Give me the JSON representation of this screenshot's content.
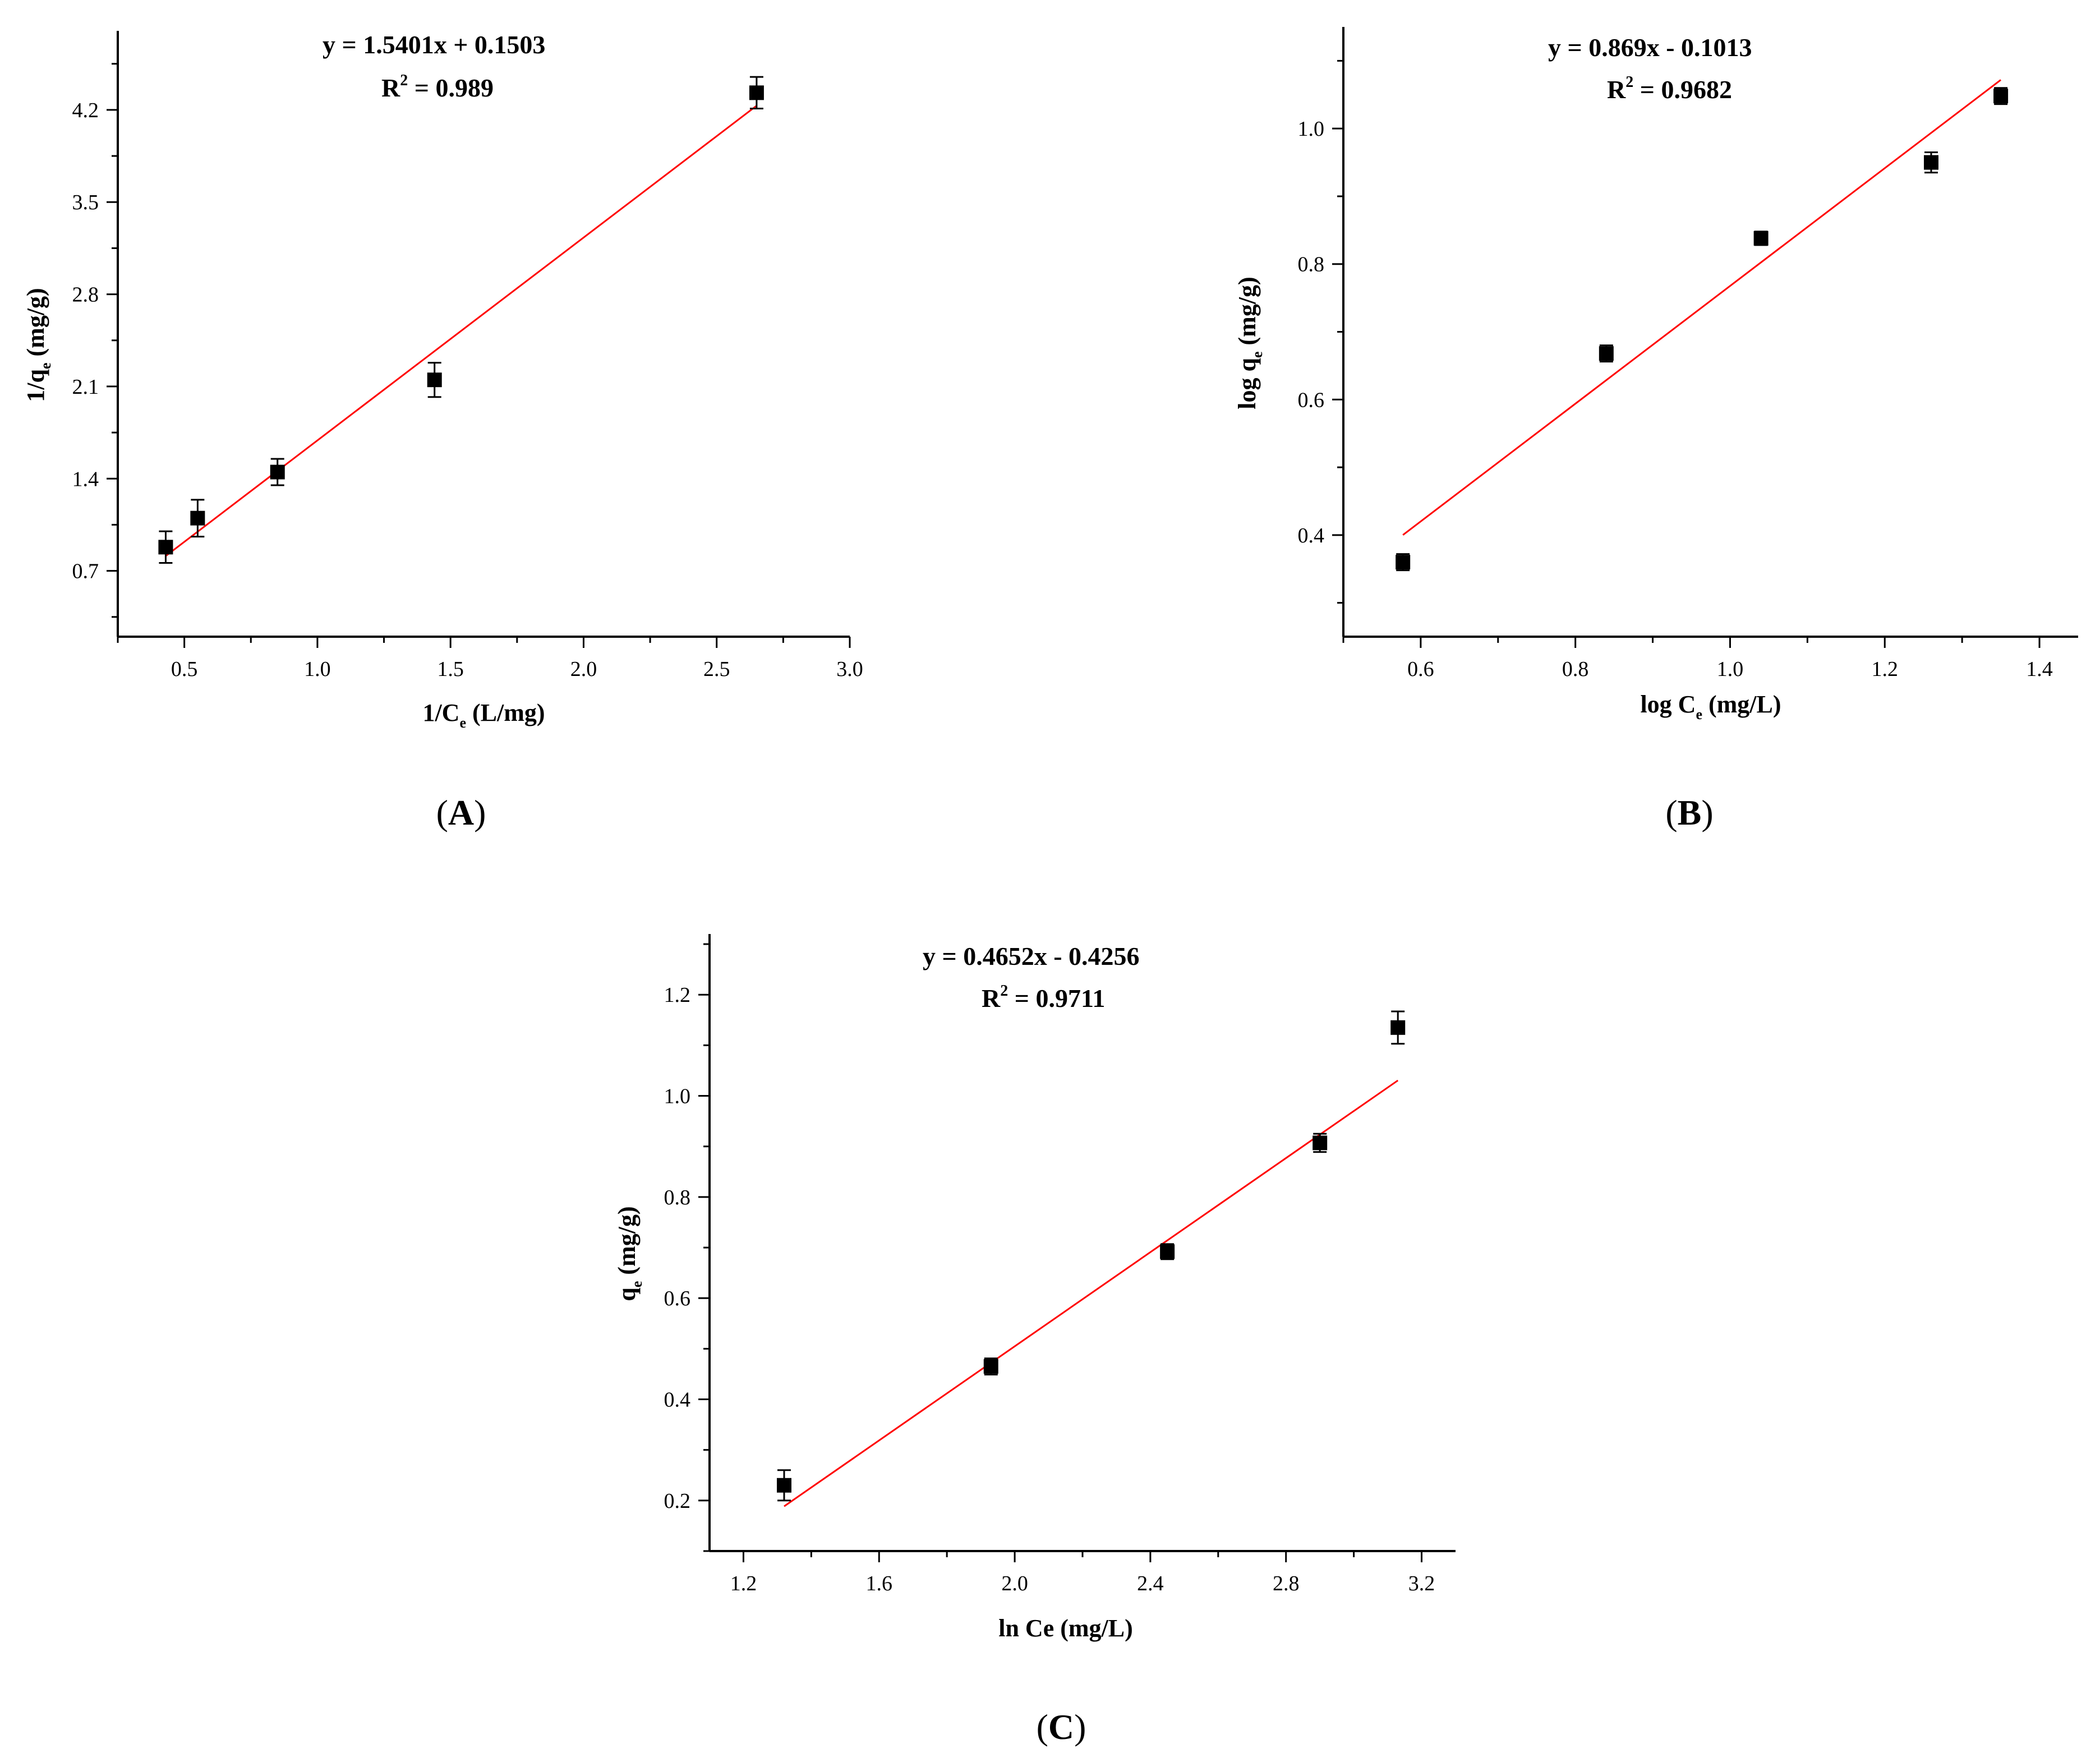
{
  "colors": {
    "fit_line": "#ff0000",
    "marker": "#000000",
    "axis": "#000000",
    "background": "#ffffff"
  },
  "chart_data": [
    {
      "id": "A",
      "type": "scatter",
      "panel_label": "A",
      "xlabel": {
        "main": "1/C",
        "sub": "e",
        "rest": " (L/mg)"
      },
      "ylabel": {
        "main": "1/q",
        "sub": "e",
        "rest": " (mg/g)"
      },
      "equation": "y = 1.5401x + 0.1503",
      "r2": {
        "prefix": "R",
        "sup": "2",
        "value": " = 0.989"
      },
      "xlim": [
        0.25,
        3.0
      ],
      "ylim": [
        0.2,
        4.8
      ],
      "xticks": [
        0.5,
        1.0,
        1.5,
        2.0,
        2.5,
        3.0
      ],
      "xtick_labels": [
        "0.5",
        "1.0",
        "1.5",
        "2.0",
        "2.5",
        "3.0"
      ],
      "yticks": [
        0.7,
        1.4,
        2.1,
        2.8,
        3.5,
        4.2
      ],
      "ytick_labels": [
        "0.7",
        "1.4",
        "2.1",
        "2.8",
        "3.5",
        "4.2"
      ],
      "points": [
        {
          "x": 0.43,
          "y": 0.88,
          "err": 0.12
        },
        {
          "x": 0.55,
          "y": 1.1,
          "err": 0.14
        },
        {
          "x": 0.85,
          "y": 1.45,
          "err": 0.1
        },
        {
          "x": 1.44,
          "y": 2.15,
          "err": 0.13
        },
        {
          "x": 2.65,
          "y": 4.33,
          "err": 0.12
        }
      ],
      "fit": {
        "slope": 1.5401,
        "intercept": 0.1503,
        "x_range": [
          0.43,
          2.65
        ]
      }
    },
    {
      "id": "B",
      "type": "scatter",
      "panel_label": "B",
      "xlabel": {
        "main": "log C",
        "sub": "e",
        "rest": " (mg/L)"
      },
      "ylabel": {
        "main": "log q",
        "sub": "e",
        "rest": " (mg/g)"
      },
      "equation": "y = 0.869x - 0.1013",
      "r2": {
        "prefix": "R",
        "sup": "2",
        "value": " = 0.9682"
      },
      "xlim": [
        0.5,
        1.45
      ],
      "ylim": [
        0.25,
        1.15
      ],
      "xticks": [
        0.6,
        0.8,
        1.0,
        1.2,
        1.4
      ],
      "xtick_labels": [
        "0.6",
        "0.8",
        "1.0",
        "1.2",
        "1.4"
      ],
      "yticks": [
        0.4,
        0.6,
        0.8,
        1.0
      ],
      "ytick_labels": [
        "0.4",
        "0.6",
        "0.8",
        "1.0"
      ],
      "points": [
        {
          "x": 0.577,
          "y": 0.36,
          "err": 0.012
        },
        {
          "x": 0.84,
          "y": 0.668,
          "err": 0.012
        },
        {
          "x": 1.04,
          "y": 0.838,
          "err": 0.01
        },
        {
          "x": 1.26,
          "y": 0.95,
          "err": 0.015
        },
        {
          "x": 1.35,
          "y": 1.048,
          "err": 0.012
        }
      ],
      "fit": {
        "slope": 0.869,
        "intercept": -0.1013,
        "x_range": [
          0.577,
          1.35
        ]
      }
    },
    {
      "id": "C",
      "type": "scatter",
      "panel_label": "C",
      "xlabel": {
        "main": "ln Ce (mg/L)",
        "sub": "",
        "rest": ""
      },
      "ylabel": {
        "main": "q",
        "sub": "e",
        "rest": " (mg/g)"
      },
      "equation": "y = 0.4652x - 0.4256",
      "r2": {
        "prefix": "R",
        "sup": "2",
        "value": " = 0.9711"
      },
      "xlim": [
        1.1,
        3.3
      ],
      "ylim": [
        0.1,
        1.32
      ],
      "xticks": [
        1.2,
        1.6,
        2.0,
        2.4,
        2.8,
        3.2
      ],
      "xtick_labels": [
        "1.2",
        "1.6",
        "2.0",
        "2.4",
        "2.8",
        "3.2"
      ],
      "yticks": [
        0.2,
        0.4,
        0.6,
        0.8,
        1.0,
        1.2
      ],
      "ytick_labels": [
        "0.2",
        "0.4",
        "0.6",
        "0.8",
        "1.0",
        "1.2"
      ],
      "points": [
        {
          "x": 1.32,
          "y": 0.23,
          "err": 0.03
        },
        {
          "x": 1.93,
          "y": 0.465,
          "err": 0.016
        },
        {
          "x": 2.45,
          "y": 0.692,
          "err": 0.015
        },
        {
          "x": 2.9,
          "y": 0.907,
          "err": 0.018
        },
        {
          "x": 3.13,
          "y": 1.135,
          "err": 0.032
        }
      ],
      "fit": {
        "slope": 0.4652,
        "intercept": -0.4256,
        "x_range": [
          1.32,
          3.13
        ]
      }
    }
  ]
}
